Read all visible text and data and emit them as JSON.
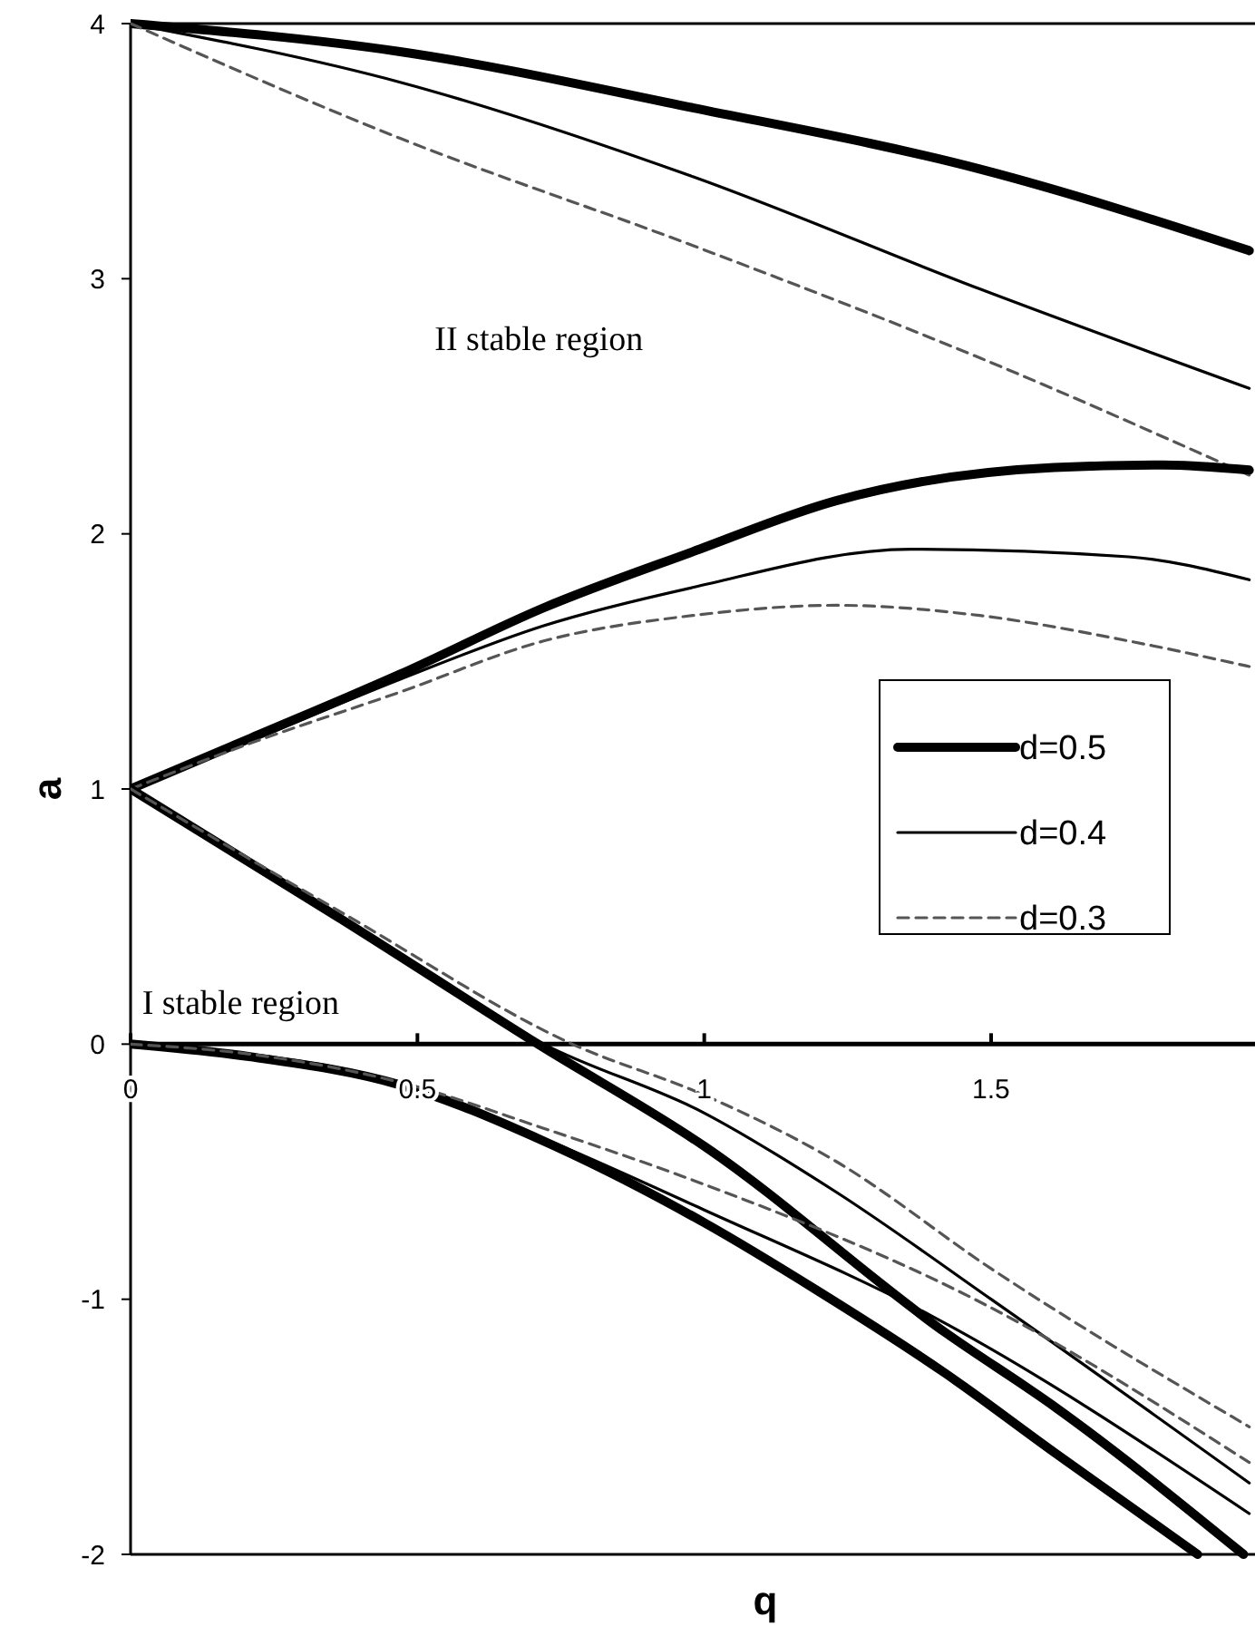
{
  "chart_data": {
    "type": "line",
    "xlabel": "q",
    "ylabel": "a",
    "xlim": [
      0,
      1.96
    ],
    "ylim": [
      -2,
      4
    ],
    "xticks": [
      0,
      0.5,
      1,
      1.5
    ],
    "yticks": [
      -2,
      -1,
      0,
      1,
      2,
      3,
      4
    ],
    "grid": false,
    "legend": "right",
    "annotations": [
      "II stable region",
      "I stable region"
    ],
    "series": [
      {
        "name": "d=0.5",
        "color": "#000000",
        "line_style": "solid",
        "x": [
          0,
          0.47,
          0.98,
          1.48,
          1.95
        ],
        "values": [
          4,
          3.89,
          3.67,
          3.43,
          3.11
        ]
      },
      {
        "name": "d=0.4",
        "color": "#000000",
        "line_style": "solid",
        "x": [
          0,
          0.47,
          0.98,
          1.48,
          1.95
        ],
        "values": [
          4,
          3.77,
          3.4,
          2.96,
          2.57
        ]
      },
      {
        "name": "d=0.3",
        "color": "#555555",
        "line_style": "dashed",
        "x": [
          0,
          0.47,
          0.98,
          1.48,
          1.95
        ],
        "values": [
          4,
          3.55,
          3.13,
          2.69,
          2.23
        ]
      },
      {
        "color": "#000000",
        "line_style": "solid",
        "x": [
          0,
          0.21,
          0.47,
          0.72,
          0.98,
          1.23,
          1.61,
          1.8,
          1.95
        ],
        "values": [
          1,
          1.2,
          1.45,
          1.71,
          1.93,
          2.13,
          2.26,
          2.27,
          2.25
        ]
      },
      {
        "color": "#000000",
        "line_style": "solid",
        "x": [
          0,
          0.21,
          0.47,
          0.72,
          0.98,
          1.36,
          1.74,
          1.95
        ],
        "values": [
          1,
          1.19,
          1.43,
          1.64,
          1.79,
          1.94,
          1.91,
          1.82
        ]
      },
      {
        "color": "#555555",
        "line_style": "dashed",
        "x": [
          0,
          0.21,
          0.47,
          0.72,
          0.98,
          1.23,
          1.48,
          1.74,
          1.95
        ],
        "values": [
          1,
          1.18,
          1.38,
          1.58,
          1.68,
          1.72,
          1.68,
          1.58,
          1.48
        ]
      },
      {
        "color": "#000000",
        "line_style": "solid",
        "x": [
          0,
          0.36,
          0.71,
          1.0,
          1.42,
          1.61,
          1.94
        ],
        "values": [
          1,
          0.5,
          0,
          -0.4,
          -1.13,
          -1.42,
          -2
        ]
      },
      {
        "color": "#000000",
        "line_style": "solid",
        "x": [
          0,
          0.36,
          0.72,
          1.0,
          1.23,
          1.5,
          1.95
        ],
        "values": [
          1,
          0.5,
          0,
          -0.27,
          -0.58,
          -1.0,
          -1.72
        ]
      },
      {
        "color": "#555555",
        "line_style": "dashed",
        "x": [
          0,
          0.38,
          0.77,
          1.0,
          1.23,
          1.5,
          1.95
        ],
        "values": [
          1,
          0.5,
          0,
          -0.2,
          -0.46,
          -0.88,
          -1.5
        ]
      },
      {
        "color": "#000000",
        "line_style": "solid",
        "x": [
          0,
          0.21,
          0.47,
          0.72,
          1.0,
          1.2,
          1.42,
          1.61,
          1.86
        ],
        "values": [
          0,
          -0.05,
          -0.16,
          -0.38,
          -0.7,
          -0.97,
          -1.29,
          -1.6,
          -2
        ]
      },
      {
        "color": "#000000",
        "line_style": "solid",
        "x": [
          0,
          0.21,
          0.47,
          0.72,
          1.0,
          1.4,
          1.95
        ],
        "values": [
          0,
          -0.04,
          -0.15,
          -0.37,
          -0.65,
          -1.07,
          -1.84
        ]
      },
      {
        "color": "#555555",
        "line_style": "dashed",
        "x": [
          0,
          0.21,
          0.47,
          0.72,
          1.0,
          1.48,
          1.95
        ],
        "values": [
          0,
          -0.04,
          -0.15,
          -0.33,
          -0.55,
          -1.01,
          -1.64
        ]
      }
    ]
  }
}
